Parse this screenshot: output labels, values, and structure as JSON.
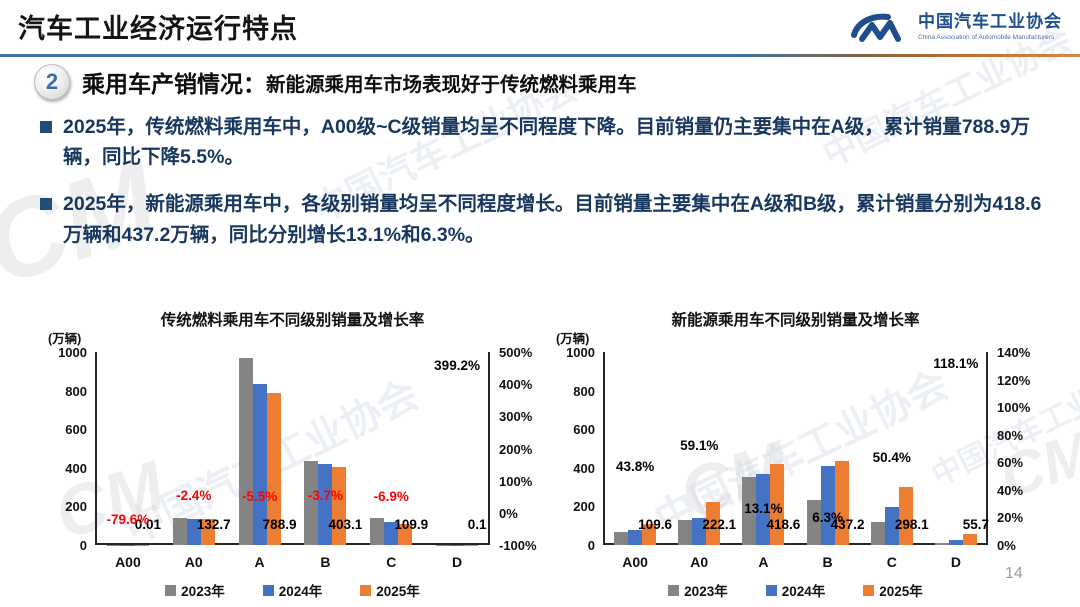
{
  "header": {
    "title": "汽车工业经济运行特点",
    "logo": {
      "mark": "CM",
      "name_cn": "中国汽车工业协会",
      "name_en": "China Association of Automobile Manufacturers"
    }
  },
  "section": {
    "number": "2",
    "title": "乘用车产销情况：",
    "subtitle": "新能源乘用车市场表现好于传统燃料乘用车"
  },
  "bullets": [
    "2025年，传统燃料乘用车中，A00级~C级销量均呈不同程度下降。目前销量仍主要集中在A级，累计销量788.9万辆，同比下降5.5%。",
    "2025年，新能源乘用车中，各级别销量均呈不同程度增长。目前销量主要集中在A级和B级，累计销量分别为418.6万辆和437.2万辆，同比分别增长13.1%和6.3%。"
  ],
  "colors": {
    "gray": "#848484",
    "blue": "#4472C4",
    "orange": "#ED7D31",
    "red": "#FF0000",
    "black": "#000000",
    "rule_blue": "#41719C",
    "rule_orange": "#C87B38",
    "body_text": "#17375E"
  },
  "watermark": {
    "text": "中国汽车工业协会",
    "mark": "CM"
  },
  "page_number": "14",
  "chart_data": [
    {
      "type": "bar",
      "title": "传统燃料乘用车不同级别销量及增长率",
      "unit_label": "(万辆)",
      "categories": [
        "A00",
        "A0",
        "A",
        "B",
        "C",
        "D"
      ],
      "series": [
        {
          "name": "2023年",
          "color_key": "gray",
          "values": [
            0.2,
            138,
            970,
            433,
            140,
            0.05
          ]
        },
        {
          "name": "2024年",
          "color_key": "blue",
          "values": [
            0.05,
            136.0,
            834.8,
            418.6,
            118.0,
            0.02
          ]
        },
        {
          "name": "2025年",
          "color_key": "orange",
          "values": [
            0.01,
            132.7,
            788.9,
            403.1,
            109.9,
            0.1
          ]
        }
      ],
      "value_labels": [
        "0.01",
        "132.7",
        "788.9",
        "403.1",
        "109.9",
        "0.1"
      ],
      "growth_labels": [
        {
          "text": "-79.6%",
          "value": -79.6,
          "color": "#FF0000"
        },
        {
          "text": "-2.4%",
          "value": -2.4,
          "color": "#FF0000"
        },
        {
          "text": "-5.5%",
          "value": -5.5,
          "color": "#FF0000"
        },
        {
          "text": "-3.7%",
          "value": -3.7,
          "color": "#FF0000"
        },
        {
          "text": "-6.9%",
          "value": -6.9,
          "color": "#FF0000"
        },
        {
          "text": "399.2%",
          "value": 399.2,
          "color": "#000000"
        }
      ],
      "y_left": {
        "min": 0,
        "max": 1000,
        "ticks": [
          "1000",
          "800",
          "600",
          "400",
          "200",
          "0"
        ]
      },
      "y_right": {
        "min": -100,
        "max": 500,
        "ticks": [
          "500%",
          "400%",
          "300%",
          "200%",
          "100%",
          "0%",
          "-100%"
        ]
      },
      "grid": false,
      "legend_position": "bottom"
    },
    {
      "type": "bar",
      "title": "新能源乘用车不同级别销量及增长率",
      "unit_label": "(万辆)",
      "categories": [
        "A00",
        "A0",
        "A",
        "B",
        "C",
        "D"
      ],
      "series": [
        {
          "name": "2023年",
          "color_key": "gray",
          "values": [
            66,
            128,
            350,
            234,
            117,
            10
          ]
        },
        {
          "name": "2024年",
          "color_key": "blue",
          "values": [
            76.2,
            139.6,
            370.1,
            411.3,
            198.2,
            25.5
          ]
        },
        {
          "name": "2025年",
          "color_key": "orange",
          "values": [
            109.6,
            222.1,
            418.6,
            437.2,
            298.1,
            55.7
          ]
        }
      ],
      "value_labels": [
        "109.6",
        "222.1",
        "418.6",
        "437.2",
        "298.1",
        "55.7"
      ],
      "growth_labels": [
        {
          "text": "43.8%",
          "value": 43.8,
          "color": "#000000"
        },
        {
          "text": "59.1%",
          "value": 59.1,
          "color": "#000000"
        },
        {
          "text": "13.1%",
          "value": 13.1,
          "color": "#000000"
        },
        {
          "text": "6.3%",
          "value": 6.3,
          "color": "#000000"
        },
        {
          "text": "50.4%",
          "value": 50.4,
          "color": "#000000"
        },
        {
          "text": "118.1%",
          "value": 118.1,
          "color": "#000000"
        }
      ],
      "y_left": {
        "min": 0,
        "max": 1000,
        "ticks": [
          "1000",
          "800",
          "600",
          "400",
          "200",
          "0"
        ]
      },
      "y_right": {
        "min": 0,
        "max": 140,
        "ticks": [
          "140%",
          "120%",
          "100%",
          "80%",
          "60%",
          "40%",
          "20%",
          "0%"
        ]
      },
      "grid": false,
      "legend_position": "bottom"
    }
  ]
}
